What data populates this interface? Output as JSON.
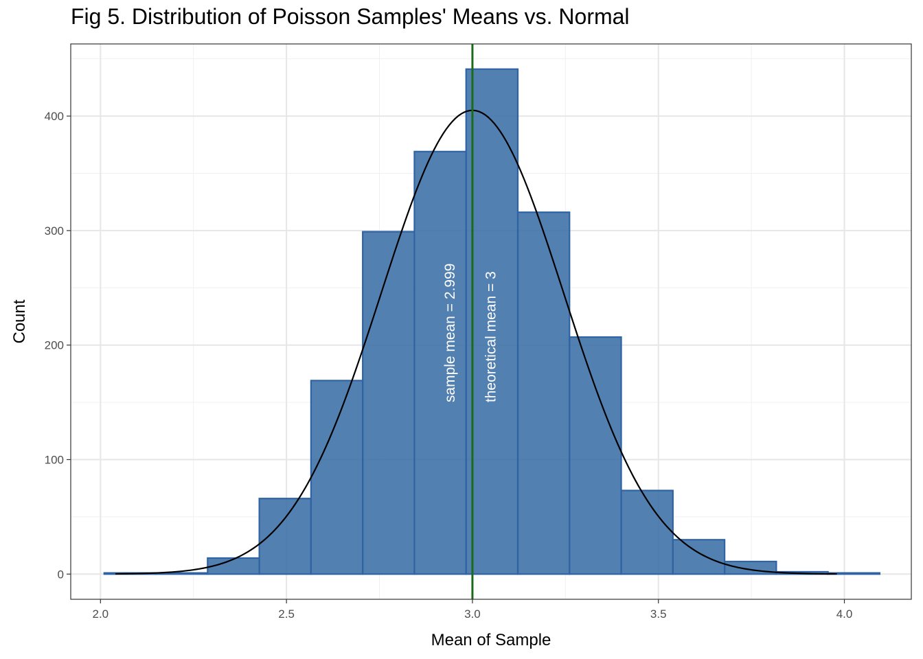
{
  "chart_data": {
    "type": "bar",
    "title": "Fig 5. Distribution of Poisson Samples' Means vs. Normal",
    "xlabel": "Mean of Sample",
    "ylabel": "Count",
    "xlim": [
      1.92,
      4.18
    ],
    "ylim": [
      -22,
      463
    ],
    "x_ticks": [
      2.0,
      2.5,
      3.0,
      3.5,
      4.0
    ],
    "x_tick_labels": [
      "2.0",
      "2.5",
      "3.0",
      "3.5",
      "4.0"
    ],
    "y_ticks": [
      0,
      100,
      200,
      300,
      400
    ],
    "y_tick_labels": [
      "0",
      "100",
      "200",
      "300",
      "400"
    ],
    "grid": true,
    "bins": [
      {
        "x0": 2.01,
        "x1": 2.149,
        "count": 1
      },
      {
        "x0": 2.149,
        "x1": 2.288,
        "count": 1
      },
      {
        "x0": 2.288,
        "x1": 2.427,
        "count": 14
      },
      {
        "x0": 2.427,
        "x1": 2.566,
        "count": 66
      },
      {
        "x0": 2.566,
        "x1": 2.705,
        "count": 169
      },
      {
        "x0": 2.705,
        "x1": 2.844,
        "count": 299
      },
      {
        "x0": 2.844,
        "x1": 2.983,
        "count": 369
      },
      {
        "x0": 2.983,
        "x1": 3.122,
        "count": 441
      },
      {
        "x0": 3.122,
        "x1": 3.261,
        "count": 316
      },
      {
        "x0": 3.261,
        "x1": 3.4,
        "count": 207
      },
      {
        "x0": 3.4,
        "x1": 3.539,
        "count": 73
      },
      {
        "x0": 3.539,
        "x1": 3.678,
        "count": 30
      },
      {
        "x0": 3.678,
        "x1": 3.817,
        "count": 11
      },
      {
        "x0": 3.817,
        "x1": 3.956,
        "count": 2
      },
      {
        "x0": 3.956,
        "x1": 4.095,
        "count": 1
      }
    ],
    "normal_curve": {
      "mean": 3.0,
      "sd": 0.245,
      "peak": 405,
      "x_range": [
        2.04,
        3.98
      ]
    },
    "vline": {
      "x": 3.0,
      "color": "#1a6b1a"
    },
    "annotations": [
      {
        "text": "sample mean = 2.999",
        "x": 2.94,
        "y": 150
      },
      {
        "text": "theoretical mean = 3",
        "x": 3.05,
        "y": 150
      }
    ],
    "bar_fill": "#3a6ea5",
    "bar_stroke": "#2f63a3",
    "curve_color": "#000000"
  }
}
